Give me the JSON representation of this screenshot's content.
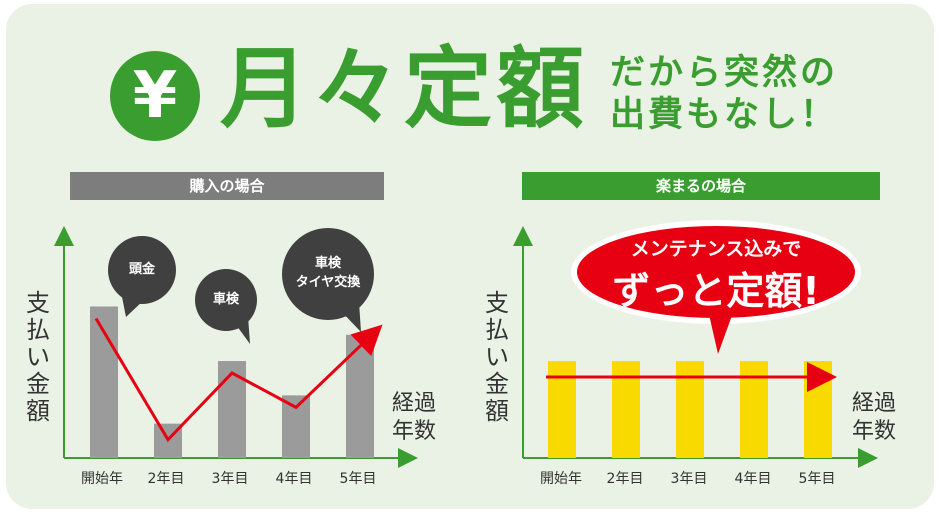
{
  "header": {
    "yen_symbol": "¥",
    "title": "月々定額",
    "tagline_line1": "だから突然の",
    "tagline_line2": "出費もなし！"
  },
  "left_panel": {
    "label": "購入の場合",
    "y_axis_label": "支払い金額",
    "x_axis_label_line1": "経過",
    "x_axis_label_line2": "年数",
    "bubbles": [
      "頭金",
      "車検",
      "車検",
      "タイヤ交換"
    ]
  },
  "right_panel": {
    "label": "楽まるの場合",
    "y_axis_label": "支払い金額",
    "x_axis_label_line1": "経過",
    "x_axis_label_line2": "年数",
    "callout_line1": "メンテナンス込みで",
    "callout_line2": "ずっと定額!"
  },
  "colors": {
    "green": "#3a9d2f",
    "gray_bar": "#9b9b9b",
    "yellow_bar": "#f8da00",
    "red": "#e60012",
    "bubble": "#404040"
  },
  "chart_data": [
    {
      "type": "bar",
      "categories": [
        "開始年",
        "2年目",
        "3年目",
        "4年目",
        "5年目"
      ],
      "values": [
        0.75,
        0.17,
        0.48,
        0.31,
        0.61
      ],
      "annotations": [
        {
          "category": "開始年",
          "text": "頭金"
        },
        {
          "category": "3年目",
          "text": "車検"
        },
        {
          "category": "5年目",
          "text": "車検 タイヤ交換"
        }
      ],
      "trend_line": true
    },
    {
      "type": "bar",
      "categories": [
        "開始年",
        "2年目",
        "3年目",
        "4年目",
        "5年目"
      ],
      "values": [
        0.48,
        0.48,
        0.48,
        0.48,
        0.48
      ],
      "trend_line": true
    }
  ]
}
